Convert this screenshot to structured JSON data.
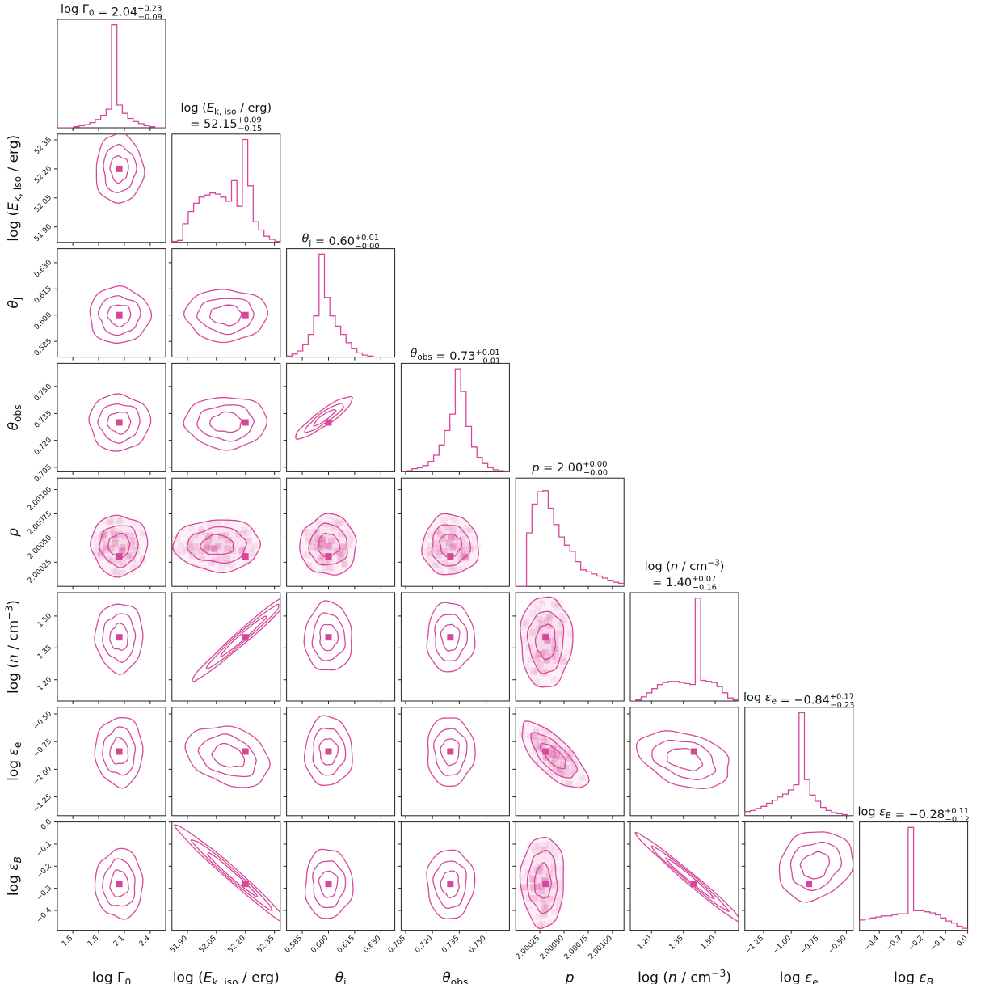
{
  "chart_data": {
    "type": "corner",
    "color": "#d6479a",
    "parameters": [
      {
        "id": "lg0",
        "label": "log Γ₀",
        "range": [
          1.32,
          2.58
        ],
        "ticks": [
          1.5,
          1.8,
          2.1,
          2.4
        ],
        "tick_labels": [
          "1.5",
          "1.8",
          "2.1",
          "2.4"
        ],
        "best": 2.04
      },
      {
        "id": "ek",
        "label": "log (E_k,iso / erg)",
        "range": [
          51.82,
          52.38
        ],
        "ticks": [
          51.9,
          52.05,
          52.2,
          52.35
        ],
        "tick_labels": [
          "51.90",
          "52.05",
          "52.20",
          "52.35"
        ],
        "best": 52.2
      },
      {
        "id": "tj",
        "label": "θ_j",
        "range": [
          0.576,
          0.638
        ],
        "ticks": [
          0.585,
          0.6,
          0.615,
          0.63
        ],
        "tick_labels": [
          "0.585",
          "0.600",
          "0.615",
          "0.630"
        ],
        "best": 0.6
      },
      {
        "id": "to",
        "label": "θ_obs",
        "range": [
          0.7025,
          0.763
        ],
        "ticks": [
          0.705,
          0.72,
          0.735,
          0.75
        ],
        "tick_labels": [
          "0.705",
          "0.720",
          "0.735",
          "0.750"
        ],
        "best": 0.73
      },
      {
        "id": "p",
        "label": "p",
        "range": [
          2.0,
          2.00112
        ],
        "ticks": [
          2.00025,
          2.0005,
          2.00075,
          2.001
        ],
        "tick_labels": [
          "2.00025",
          "2.00050",
          "2.00075",
          "2.00100"
        ],
        "best": 2.00031
      },
      {
        "id": "ln",
        "label": "log (n / cm⁻³)",
        "range": [
          1.1,
          1.61
        ],
        "ticks": [
          1.2,
          1.35,
          1.5
        ],
        "tick_labels": [
          "1.20",
          "1.35",
          "1.50"
        ],
        "best": 1.4
      },
      {
        "id": "ee",
        "label": "log ε_e",
        "range": [
          -1.42,
          -0.44
        ],
        "ticks": [
          -1.25,
          -1.0,
          -0.75,
          -0.5
        ],
        "tick_labels": [
          "−1.25",
          "−1.00",
          "−0.75",
          "−0.50"
        ],
        "best": -0.84
      },
      {
        "id": "eb",
        "label": "log ε_B",
        "range": [
          -0.49,
          0.0
        ],
        "ticks": [
          -0.4,
          -0.3,
          -0.2,
          -0.1,
          0.0
        ],
        "tick_labels": [
          "−0.4",
          "−0.3",
          "−0.2",
          "−0.1",
          "0.0"
        ],
        "best": -0.28
      }
    ],
    "y_tick_labels": {
      "ek": [
        "52.35",
        "52.20",
        "52.05",
        "51.90"
      ],
      "tj": [
        "0.630",
        "0.615",
        "0.600",
        "0.585"
      ],
      "to": [
        "0.750",
        "0.735",
        "0.720",
        "0.705"
      ],
      "p": [
        "2.00100",
        "2.00075",
        "2.00050",
        "2.00025"
      ],
      "ln": [
        "1.50",
        "1.35",
        "1.20"
      ],
      "ee": [
        "−0.50",
        "−0.75",
        "−1.00",
        "−1.25"
      ],
      "eb": [
        "0.0",
        "−0.1",
        "−0.2",
        "−0.3",
        "−0.4"
      ]
    },
    "titles": [
      {
        "name": "log Γ₀",
        "value": "2.04",
        "plus": "+0.23",
        "minus": "−0.09"
      },
      {
        "name": "log (E_k,iso / erg)",
        "value": "52.15",
        "plus": "+0.09",
        "minus": "−0.15"
      },
      {
        "name": "θ_j",
        "value": "0.60",
        "plus": "+0.01",
        "minus": "−0.00"
      },
      {
        "name": "θ_obs",
        "value": "0.73",
        "plus": "+0.01",
        "minus": "−0.01"
      },
      {
        "name": "p",
        "value": "2.00",
        "plus": "+0.00",
        "minus": "−0.00"
      },
      {
        "name": "log (n / cm⁻³)",
        "value": "1.40",
        "plus": "+0.07",
        "minus": "−0.16"
      },
      {
        "name": "log ε_e",
        "value": "−0.84",
        "plus": "+0.17",
        "minus": "−0.23"
      },
      {
        "name": "log ε_B",
        "value": "−0.28",
        "plus": "+0.11",
        "minus": "−0.12"
      }
    ],
    "histograms": {
      "lg0": [
        0,
        0,
        0,
        1,
        2,
        3,
        5,
        8,
        12,
        18,
        100,
        22,
        14,
        9,
        6,
        4,
        2,
        1,
        0,
        0
      ],
      "ek": [
        1,
        2,
        18,
        30,
        38,
        44,
        46,
        48,
        47,
        44,
        40,
        60,
        35,
        100,
        55,
        20,
        12,
        6,
        3,
        1
      ],
      "tj": [
        1,
        3,
        6,
        12,
        22,
        40,
        100,
        58,
        40,
        30,
        22,
        14,
        8,
        4,
        2,
        1,
        0,
        0,
        0,
        0
      ],
      "to": [
        0,
        1,
        3,
        4,
        6,
        10,
        16,
        26,
        40,
        56,
        100,
        78,
        44,
        24,
        14,
        8,
        4,
        2,
        1,
        0
      ],
      "p": [
        0,
        0,
        52,
        80,
        92,
        93,
        76,
        60,
        48,
        40,
        34,
        24,
        16,
        14,
        12,
        10,
        8,
        6,
        4,
        3
      ],
      "ln": [
        0,
        1,
        4,
        8,
        12,
        16,
        18,
        19,
        19,
        18,
        17,
        16,
        100,
        20,
        19,
        18,
        14,
        8,
        3,
        1
      ],
      "ee": [
        4,
        5,
        7,
        9,
        12,
        15,
        18,
        21,
        25,
        30,
        100,
        35,
        20,
        14,
        8,
        5,
        3,
        2,
        1,
        0
      ],
      "eb": [
        10,
        11,
        12,
        13,
        14,
        14,
        15,
        16,
        16,
        100,
        19,
        19,
        18,
        17,
        15,
        12,
        9,
        7,
        4,
        2
      ]
    }
  }
}
